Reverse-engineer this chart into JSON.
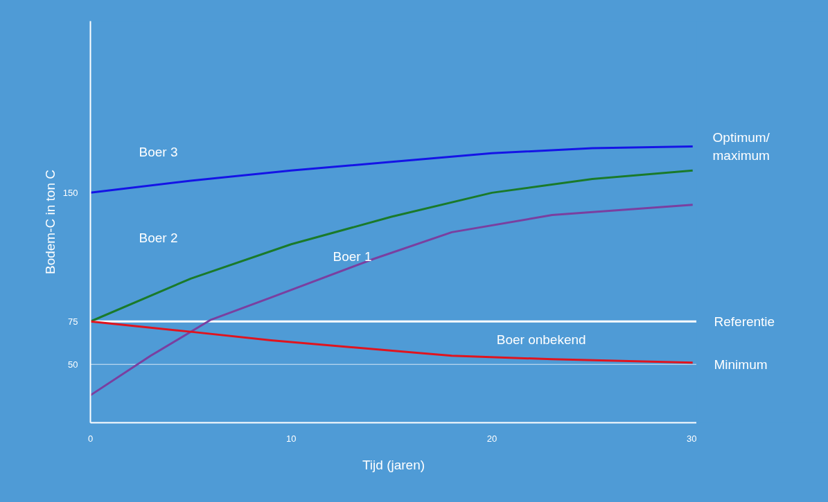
{
  "chart_data": {
    "type": "line",
    "xlabel": "Tijd (jaren)",
    "ylabel": "Bodem-C in ton C",
    "xlim": [
      0,
      30.2
    ],
    "ylim": [
      16,
      250
    ],
    "xticks": [
      0,
      10,
      20,
      30
    ],
    "yticks": [
      50,
      75,
      150
    ],
    "grid": false,
    "marker": "none",
    "line_style": "solid",
    "series": [
      {
        "name": "Boer 3",
        "color": "#1414e6",
        "x": [
          0,
          5,
          10,
          15,
          20,
          25,
          30
        ],
        "values": [
          150,
          157,
          163,
          168,
          173,
          176,
          177
        ]
      },
      {
        "name": "Boer 2",
        "color": "#1a7a2a",
        "x": [
          0,
          5,
          10,
          15,
          20,
          25,
          30
        ],
        "values": [
          75,
          100,
          120,
          136,
          150,
          158,
          163
        ]
      },
      {
        "name": "Boer 1",
        "color": "#7a3fa0",
        "x": [
          0,
          3,
          6,
          9,
          14,
          18,
          23,
          30
        ],
        "values": [
          32,
          55,
          76,
          89,
          111,
          127,
          137,
          143
        ]
      },
      {
        "name": "Boer onbekend",
        "color": "#e0141e",
        "x": [
          0,
          5,
          9,
          18,
          23,
          30
        ],
        "values": [
          75,
          69,
          64,
          55,
          53,
          51
        ]
      }
    ],
    "ref_lines": [
      {
        "axis": "y",
        "value": 75,
        "label": "Referentie",
        "color": "#ffffff"
      },
      {
        "axis": "y",
        "value": 50,
        "label": "Minimum",
        "color": "#d8e8f5"
      }
    ],
    "annotations": [
      {
        "text": "Optimum/\nmaximum",
        "x": 30,
        "y": 177
      }
    ]
  }
}
